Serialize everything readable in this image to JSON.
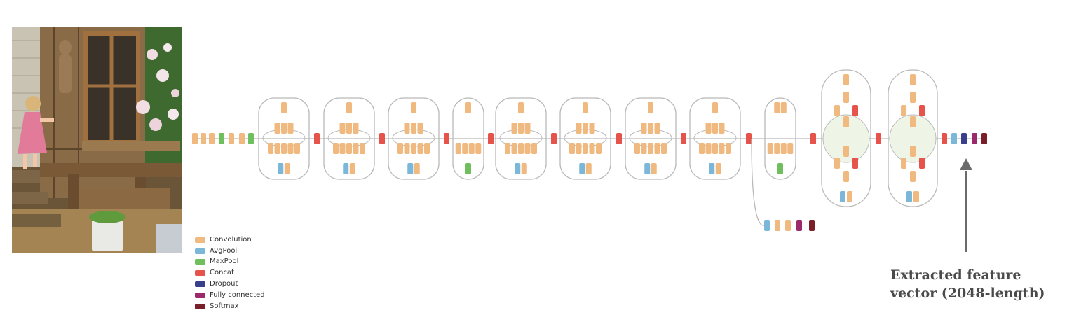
{
  "legend": [
    {
      "label": "Convolution",
      "color": "#f0b97f"
    },
    {
      "label": "AvgPool",
      "color": "#7ab7d8"
    },
    {
      "label": "MaxPool",
      "color": "#6fbf5e"
    },
    {
      "label": "Concat",
      "color": "#e5534b"
    },
    {
      "label": "Dropout",
      "color": "#3a3f8c"
    },
    {
      "label": "Fully connected",
      "color": "#9c2a6a"
    },
    {
      "label": "Softmax",
      "color": "#7a1f2a"
    }
  ],
  "annotation": {
    "line1": "Extracted feature",
    "line2": "vector (2048-length)"
  },
  "colors": {
    "module_fill": "#eef5e6",
    "connector": "#b9b9b9",
    "arrow": "#6b6b6b"
  }
}
